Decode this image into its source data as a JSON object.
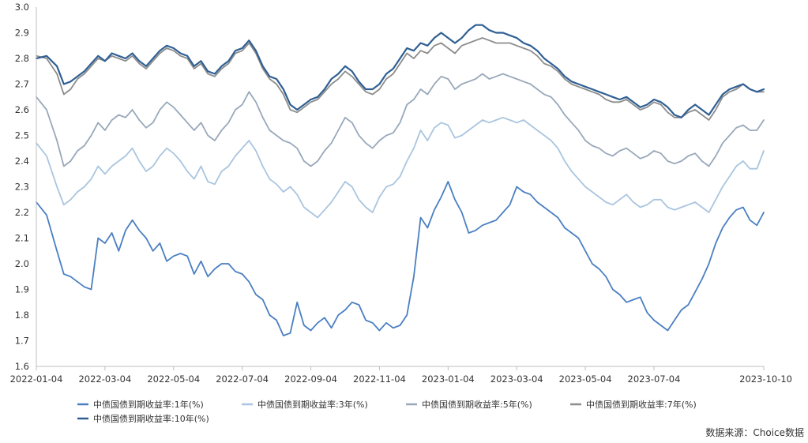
{
  "chart_data": {
    "type": "line",
    "title": "",
    "xlabel": "",
    "ylabel": "",
    "ylim": [
      1.6,
      3.0
    ],
    "y_ticks": [
      "3.0",
      "2.9",
      "2.8",
      "2.7",
      "2.6",
      "2.5",
      "2.4",
      "2.3",
      "2.2",
      "2.1",
      "2.0",
      "1.9",
      "1.8",
      "1.7",
      "1.6"
    ],
    "y_tick_values": [
      3.0,
      2.9,
      2.8,
      2.7,
      2.6,
      2.5,
      2.4,
      2.3,
      2.2,
      2.1,
      2.0,
      1.9,
      1.8,
      1.7,
      1.6
    ],
    "x_ticks": [
      "2022-01-04",
      "2022-03-04",
      "2022-05-04",
      "2022-07-04",
      "2022-09-04",
      "2022-11-04",
      "2023-01-04",
      "2023-03-04",
      "2023-05-04",
      "2023-07-04",
      "2023-10-10"
    ],
    "x_tick_values": [
      0,
      2,
      4,
      6,
      8,
      10,
      12,
      14,
      16,
      18,
      21.2
    ],
    "x_range": [
      0,
      21.2
    ],
    "grid": false,
    "legend_position": "bottom",
    "source": "数据来源：Choice数据",
    "series": [
      {
        "name": "中债国债到期收益率:1年(%)",
        "color": "#4a7fc1",
        "x": [
          0,
          0.3,
          0.6,
          0.8,
          1.0,
          1.2,
          1.4,
          1.6,
          1.8,
          2.0,
          2.2,
          2.4,
          2.6,
          2.8,
          3.0,
          3.2,
          3.4,
          3.6,
          3.8,
          4.0,
          4.2,
          4.4,
          4.6,
          4.8,
          5.0,
          5.2,
          5.4,
          5.6,
          5.8,
          6.0,
          6.2,
          6.4,
          6.6,
          6.8,
          7.0,
          7.2,
          7.4,
          7.6,
          7.8,
          8.0,
          8.2,
          8.4,
          8.6,
          8.8,
          9.0,
          9.2,
          9.4,
          9.6,
          9.8,
          10.0,
          10.2,
          10.4,
          10.6,
          10.8,
          11.0,
          11.2,
          11.4,
          11.6,
          11.8,
          12.0,
          12.2,
          12.4,
          12.6,
          12.8,
          13.0,
          13.2,
          13.4,
          13.6,
          13.8,
          14.0,
          14.2,
          14.4,
          14.6,
          14.8,
          15.0,
          15.2,
          15.4,
          15.6,
          15.8,
          16.0,
          16.2,
          16.4,
          16.6,
          16.8,
          17.0,
          17.2,
          17.4,
          17.6,
          17.8,
          18.0,
          18.2,
          18.4,
          18.6,
          18.8,
          19.0,
          19.2,
          19.4,
          19.6,
          19.8,
          20.0,
          20.2,
          20.4,
          20.6,
          20.8,
          21.0,
          21.2
        ],
        "values": [
          2.24,
          2.19,
          2.05,
          1.96,
          1.95,
          1.93,
          1.91,
          1.9,
          2.1,
          2.08,
          2.12,
          2.05,
          2.13,
          2.17,
          2.13,
          2.1,
          2.05,
          2.08,
          2.01,
          2.03,
          2.04,
          2.03,
          1.96,
          2.01,
          1.95,
          1.98,
          2.0,
          2.0,
          1.97,
          1.96,
          1.93,
          1.88,
          1.86,
          1.8,
          1.78,
          1.72,
          1.73,
          1.85,
          1.76,
          1.74,
          1.77,
          1.79,
          1.75,
          1.8,
          1.82,
          1.85,
          1.84,
          1.78,
          1.77,
          1.74,
          1.77,
          1.75,
          1.76,
          1.8,
          1.95,
          2.18,
          2.14,
          2.21,
          2.26,
          2.32,
          2.25,
          2.2,
          2.12,
          2.13,
          2.15,
          2.16,
          2.17,
          2.2,
          2.23,
          2.3,
          2.28,
          2.27,
          2.24,
          2.22,
          2.2,
          2.18,
          2.14,
          2.12,
          2.1,
          2.05,
          2.0,
          1.98,
          1.95,
          1.9,
          1.88,
          1.85,
          1.86,
          1.87,
          1.81,
          1.78,
          1.76,
          1.74,
          1.78,
          1.82,
          1.84,
          1.89,
          1.94,
          2.0,
          2.08,
          2.14,
          2.18,
          2.21,
          2.22,
          2.17,
          2.15,
          2.2
        ]
      },
      {
        "name": "中债国债到期收益率:3年(%)",
        "color": "#a9c5df",
        "x": [
          0,
          0.3,
          0.6,
          0.8,
          1.0,
          1.2,
          1.4,
          1.6,
          1.8,
          2.0,
          2.2,
          2.4,
          2.6,
          2.8,
          3.0,
          3.2,
          3.4,
          3.6,
          3.8,
          4.0,
          4.2,
          4.4,
          4.6,
          4.8,
          5.0,
          5.2,
          5.4,
          5.6,
          5.8,
          6.0,
          6.2,
          6.4,
          6.6,
          6.8,
          7.0,
          7.2,
          7.4,
          7.6,
          7.8,
          8.0,
          8.2,
          8.4,
          8.6,
          8.8,
          9.0,
          9.2,
          9.4,
          9.6,
          9.8,
          10.0,
          10.2,
          10.4,
          10.6,
          10.8,
          11.0,
          11.2,
          11.4,
          11.6,
          11.8,
          12.0,
          12.2,
          12.4,
          12.6,
          12.8,
          13.0,
          13.2,
          13.4,
          13.6,
          13.8,
          14.0,
          14.2,
          14.4,
          14.6,
          14.8,
          15.0,
          15.2,
          15.4,
          15.6,
          15.8,
          16.0,
          16.2,
          16.4,
          16.6,
          16.8,
          17.0,
          17.2,
          17.4,
          17.6,
          17.8,
          18.0,
          18.2,
          18.4,
          18.6,
          18.8,
          19.0,
          19.2,
          19.4,
          19.6,
          19.8,
          20.0,
          20.2,
          20.4,
          20.6,
          20.8,
          21.0,
          21.2
        ],
        "values": [
          2.47,
          2.42,
          2.3,
          2.23,
          2.25,
          2.28,
          2.3,
          2.33,
          2.38,
          2.35,
          2.38,
          2.4,
          2.42,
          2.45,
          2.4,
          2.36,
          2.38,
          2.42,
          2.45,
          2.43,
          2.4,
          2.36,
          2.33,
          2.38,
          2.32,
          2.31,
          2.36,
          2.38,
          2.42,
          2.45,
          2.48,
          2.44,
          2.38,
          2.33,
          2.31,
          2.28,
          2.3,
          2.27,
          2.22,
          2.2,
          2.18,
          2.21,
          2.24,
          2.28,
          2.32,
          2.3,
          2.25,
          2.22,
          2.2,
          2.26,
          2.3,
          2.31,
          2.34,
          2.4,
          2.45,
          2.52,
          2.48,
          2.53,
          2.55,
          2.54,
          2.49,
          2.5,
          2.52,
          2.54,
          2.56,
          2.55,
          2.56,
          2.57,
          2.56,
          2.55,
          2.56,
          2.54,
          2.52,
          2.5,
          2.48,
          2.45,
          2.4,
          2.36,
          2.33,
          2.3,
          2.28,
          2.26,
          2.24,
          2.23,
          2.25,
          2.27,
          2.24,
          2.22,
          2.23,
          2.25,
          2.25,
          2.22,
          2.21,
          2.22,
          2.23,
          2.24,
          2.22,
          2.2,
          2.25,
          2.3,
          2.34,
          2.38,
          2.4,
          2.37,
          2.37,
          2.44
        ]
      },
      {
        "name": "中债国债到期收益率:5年(%)",
        "color": "#98a8ba",
        "x": [
          0,
          0.3,
          0.6,
          0.8,
          1.0,
          1.2,
          1.4,
          1.6,
          1.8,
          2.0,
          2.2,
          2.4,
          2.6,
          2.8,
          3.0,
          3.2,
          3.4,
          3.6,
          3.8,
          4.0,
          4.2,
          4.4,
          4.6,
          4.8,
          5.0,
          5.2,
          5.4,
          5.6,
          5.8,
          6.0,
          6.2,
          6.4,
          6.6,
          6.8,
          7.0,
          7.2,
          7.4,
          7.6,
          7.8,
          8.0,
          8.2,
          8.4,
          8.6,
          8.8,
          9.0,
          9.2,
          9.4,
          9.6,
          9.8,
          10.0,
          10.2,
          10.4,
          10.6,
          10.8,
          11.0,
          11.2,
          11.4,
          11.6,
          11.8,
          12.0,
          12.2,
          12.4,
          12.6,
          12.8,
          13.0,
          13.2,
          13.4,
          13.6,
          13.8,
          14.0,
          14.2,
          14.4,
          14.6,
          14.8,
          15.0,
          15.2,
          15.4,
          15.6,
          15.8,
          16.0,
          16.2,
          16.4,
          16.6,
          16.8,
          17.0,
          17.2,
          17.4,
          17.6,
          17.8,
          18.0,
          18.2,
          18.4,
          18.6,
          18.8,
          19.0,
          19.2,
          19.4,
          19.6,
          19.8,
          20.0,
          20.2,
          20.4,
          20.6,
          20.8,
          21.0,
          21.2
        ],
        "values": [
          2.65,
          2.6,
          2.48,
          2.38,
          2.4,
          2.44,
          2.46,
          2.5,
          2.55,
          2.52,
          2.56,
          2.58,
          2.57,
          2.6,
          2.56,
          2.53,
          2.55,
          2.6,
          2.63,
          2.61,
          2.58,
          2.55,
          2.52,
          2.55,
          2.5,
          2.48,
          2.52,
          2.55,
          2.6,
          2.62,
          2.67,
          2.63,
          2.57,
          2.52,
          2.5,
          2.48,
          2.47,
          2.45,
          2.4,
          2.38,
          2.4,
          2.44,
          2.47,
          2.52,
          2.57,
          2.55,
          2.5,
          2.47,
          2.45,
          2.48,
          2.5,
          2.51,
          2.55,
          2.62,
          2.64,
          2.68,
          2.66,
          2.7,
          2.73,
          2.72,
          2.68,
          2.7,
          2.71,
          2.72,
          2.74,
          2.72,
          2.73,
          2.74,
          2.73,
          2.72,
          2.71,
          2.7,
          2.68,
          2.66,
          2.65,
          2.62,
          2.58,
          2.55,
          2.52,
          2.48,
          2.46,
          2.45,
          2.43,
          2.42,
          2.44,
          2.45,
          2.43,
          2.41,
          2.42,
          2.44,
          2.43,
          2.4,
          2.39,
          2.4,
          2.42,
          2.43,
          2.4,
          2.38,
          2.42,
          2.47,
          2.5,
          2.53,
          2.54,
          2.52,
          2.52,
          2.56
        ]
      },
      {
        "name": "中债国债到期收益率:7年(%)",
        "color": "#8c8c8c",
        "x": [
          0,
          0.3,
          0.6,
          0.8,
          1.0,
          1.2,
          1.4,
          1.6,
          1.8,
          2.0,
          2.2,
          2.4,
          2.6,
          2.8,
          3.0,
          3.2,
          3.4,
          3.6,
          3.8,
          4.0,
          4.2,
          4.4,
          4.6,
          4.8,
          5.0,
          5.2,
          5.4,
          5.6,
          5.8,
          6.0,
          6.2,
          6.4,
          6.6,
          6.8,
          7.0,
          7.2,
          7.4,
          7.6,
          7.8,
          8.0,
          8.2,
          8.4,
          8.6,
          8.8,
          9.0,
          9.2,
          9.4,
          9.6,
          9.8,
          10.0,
          10.2,
          10.4,
          10.6,
          10.8,
          11.0,
          11.2,
          11.4,
          11.6,
          11.8,
          12.0,
          12.2,
          12.4,
          12.6,
          12.8,
          13.0,
          13.2,
          13.4,
          13.6,
          13.8,
          14.0,
          14.2,
          14.4,
          14.6,
          14.8,
          15.0,
          15.2,
          15.4,
          15.6,
          15.8,
          16.0,
          16.2,
          16.4,
          16.6,
          16.8,
          17.0,
          17.2,
          17.4,
          17.6,
          17.8,
          18.0,
          18.2,
          18.4,
          18.6,
          18.8,
          19.0,
          19.2,
          19.4,
          19.6,
          19.8,
          20.0,
          20.2,
          20.4,
          20.6,
          20.8,
          21.0,
          21.2
        ],
        "values": [
          2.81,
          2.8,
          2.74,
          2.66,
          2.68,
          2.72,
          2.74,
          2.77,
          2.8,
          2.79,
          2.81,
          2.8,
          2.79,
          2.81,
          2.78,
          2.76,
          2.79,
          2.82,
          2.84,
          2.83,
          2.81,
          2.8,
          2.76,
          2.78,
          2.74,
          2.73,
          2.76,
          2.78,
          2.82,
          2.83,
          2.86,
          2.82,
          2.76,
          2.72,
          2.7,
          2.66,
          2.6,
          2.59,
          2.61,
          2.63,
          2.64,
          2.67,
          2.7,
          2.72,
          2.75,
          2.73,
          2.7,
          2.67,
          2.66,
          2.68,
          2.72,
          2.74,
          2.78,
          2.82,
          2.8,
          2.83,
          2.82,
          2.85,
          2.86,
          2.84,
          2.82,
          2.85,
          2.86,
          2.87,
          2.88,
          2.87,
          2.86,
          2.86,
          2.86,
          2.85,
          2.84,
          2.83,
          2.81,
          2.78,
          2.77,
          2.75,
          2.72,
          2.7,
          2.69,
          2.68,
          2.67,
          2.66,
          2.64,
          2.63,
          2.63,
          2.64,
          2.62,
          2.6,
          2.61,
          2.63,
          2.62,
          2.59,
          2.57,
          2.57,
          2.59,
          2.6,
          2.58,
          2.56,
          2.6,
          2.65,
          2.67,
          2.68,
          2.7,
          2.68,
          2.67,
          2.67
        ]
      },
      {
        "name": "中债国债到期收益率:10年(%)",
        "color": "#2f5f93",
        "x": [
          0,
          0.3,
          0.6,
          0.8,
          1.0,
          1.2,
          1.4,
          1.6,
          1.8,
          2.0,
          2.2,
          2.4,
          2.6,
          2.8,
          3.0,
          3.2,
          3.4,
          3.6,
          3.8,
          4.0,
          4.2,
          4.4,
          4.6,
          4.8,
          5.0,
          5.2,
          5.4,
          5.6,
          5.8,
          6.0,
          6.2,
          6.4,
          6.6,
          6.8,
          7.0,
          7.2,
          7.4,
          7.6,
          7.8,
          8.0,
          8.2,
          8.4,
          8.6,
          8.8,
          9.0,
          9.2,
          9.4,
          9.6,
          9.8,
          10.0,
          10.2,
          10.4,
          10.6,
          10.8,
          11.0,
          11.2,
          11.4,
          11.6,
          11.8,
          12.0,
          12.2,
          12.4,
          12.6,
          12.8,
          13.0,
          13.2,
          13.4,
          13.6,
          13.8,
          14.0,
          14.2,
          14.4,
          14.6,
          14.8,
          15.0,
          15.2,
          15.4,
          15.6,
          15.8,
          16.0,
          16.2,
          16.4,
          16.6,
          16.8,
          17.0,
          17.2,
          17.4,
          17.6,
          17.8,
          18.0,
          18.2,
          18.4,
          18.6,
          18.8,
          19.0,
          19.2,
          19.4,
          19.6,
          19.8,
          20.0,
          20.2,
          20.4,
          20.6,
          20.8,
          21.0,
          21.2
        ],
        "values": [
          2.8,
          2.81,
          2.77,
          2.7,
          2.71,
          2.73,
          2.75,
          2.78,
          2.81,
          2.79,
          2.82,
          2.81,
          2.8,
          2.82,
          2.79,
          2.77,
          2.8,
          2.83,
          2.85,
          2.84,
          2.82,
          2.81,
          2.77,
          2.79,
          2.75,
          2.74,
          2.77,
          2.79,
          2.83,
          2.84,
          2.87,
          2.83,
          2.77,
          2.73,
          2.72,
          2.68,
          2.62,
          2.6,
          2.62,
          2.64,
          2.65,
          2.68,
          2.72,
          2.74,
          2.77,
          2.75,
          2.71,
          2.68,
          2.68,
          2.7,
          2.74,
          2.76,
          2.8,
          2.84,
          2.83,
          2.86,
          2.85,
          2.88,
          2.9,
          2.88,
          2.86,
          2.88,
          2.91,
          2.93,
          2.93,
          2.91,
          2.9,
          2.9,
          2.89,
          2.88,
          2.86,
          2.85,
          2.83,
          2.8,
          2.78,
          2.76,
          2.73,
          2.71,
          2.7,
          2.69,
          2.68,
          2.67,
          2.66,
          2.65,
          2.64,
          2.65,
          2.63,
          2.61,
          2.62,
          2.64,
          2.63,
          2.61,
          2.58,
          2.57,
          2.6,
          2.62,
          2.6,
          2.58,
          2.62,
          2.66,
          2.68,
          2.69,
          2.7,
          2.68,
          2.67,
          2.68
        ]
      }
    ]
  }
}
